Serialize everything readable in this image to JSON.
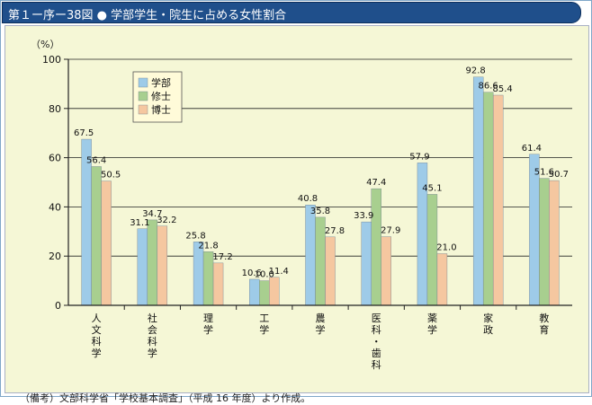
{
  "header": {
    "title": "第１ー序ー38図 ● 学部学生・院生に占める女性割合"
  },
  "footnote": "（備考）文部科学省「学校基本調査」（平成 16 年度）より作成。",
  "colors": {
    "header_bg": "#1f4f8b",
    "panel_bg": "#f5f7d6",
    "series": [
      "#9ecbe8",
      "#a8cf8f",
      "#f5c7a0"
    ]
  },
  "chart_data": {
    "type": "bar",
    "title": "",
    "ylabel": "（%）",
    "xlabel": "",
    "ylim": [
      0,
      100
    ],
    "yticks": [
      0,
      20,
      40,
      60,
      80,
      100
    ],
    "grid": true,
    "legend_position": "top-left",
    "categories": [
      "人文科学",
      "社会科学",
      "理学",
      "工学",
      "農学",
      "医科・歯科",
      "薬学",
      "家政",
      "教育"
    ],
    "series": [
      {
        "name": "学部",
        "values": [
          67.5,
          31.1,
          25.8,
          10.6,
          40.8,
          33.9,
          57.9,
          92.8,
          61.4
        ]
      },
      {
        "name": "修士",
        "values": [
          56.4,
          34.7,
          21.8,
          10.0,
          35.8,
          47.4,
          45.1,
          86.6,
          51.6
        ]
      },
      {
        "name": "博士",
        "values": [
          50.5,
          32.2,
          17.2,
          11.4,
          27.8,
          27.9,
          21.0,
          85.4,
          50.7
        ]
      }
    ]
  }
}
